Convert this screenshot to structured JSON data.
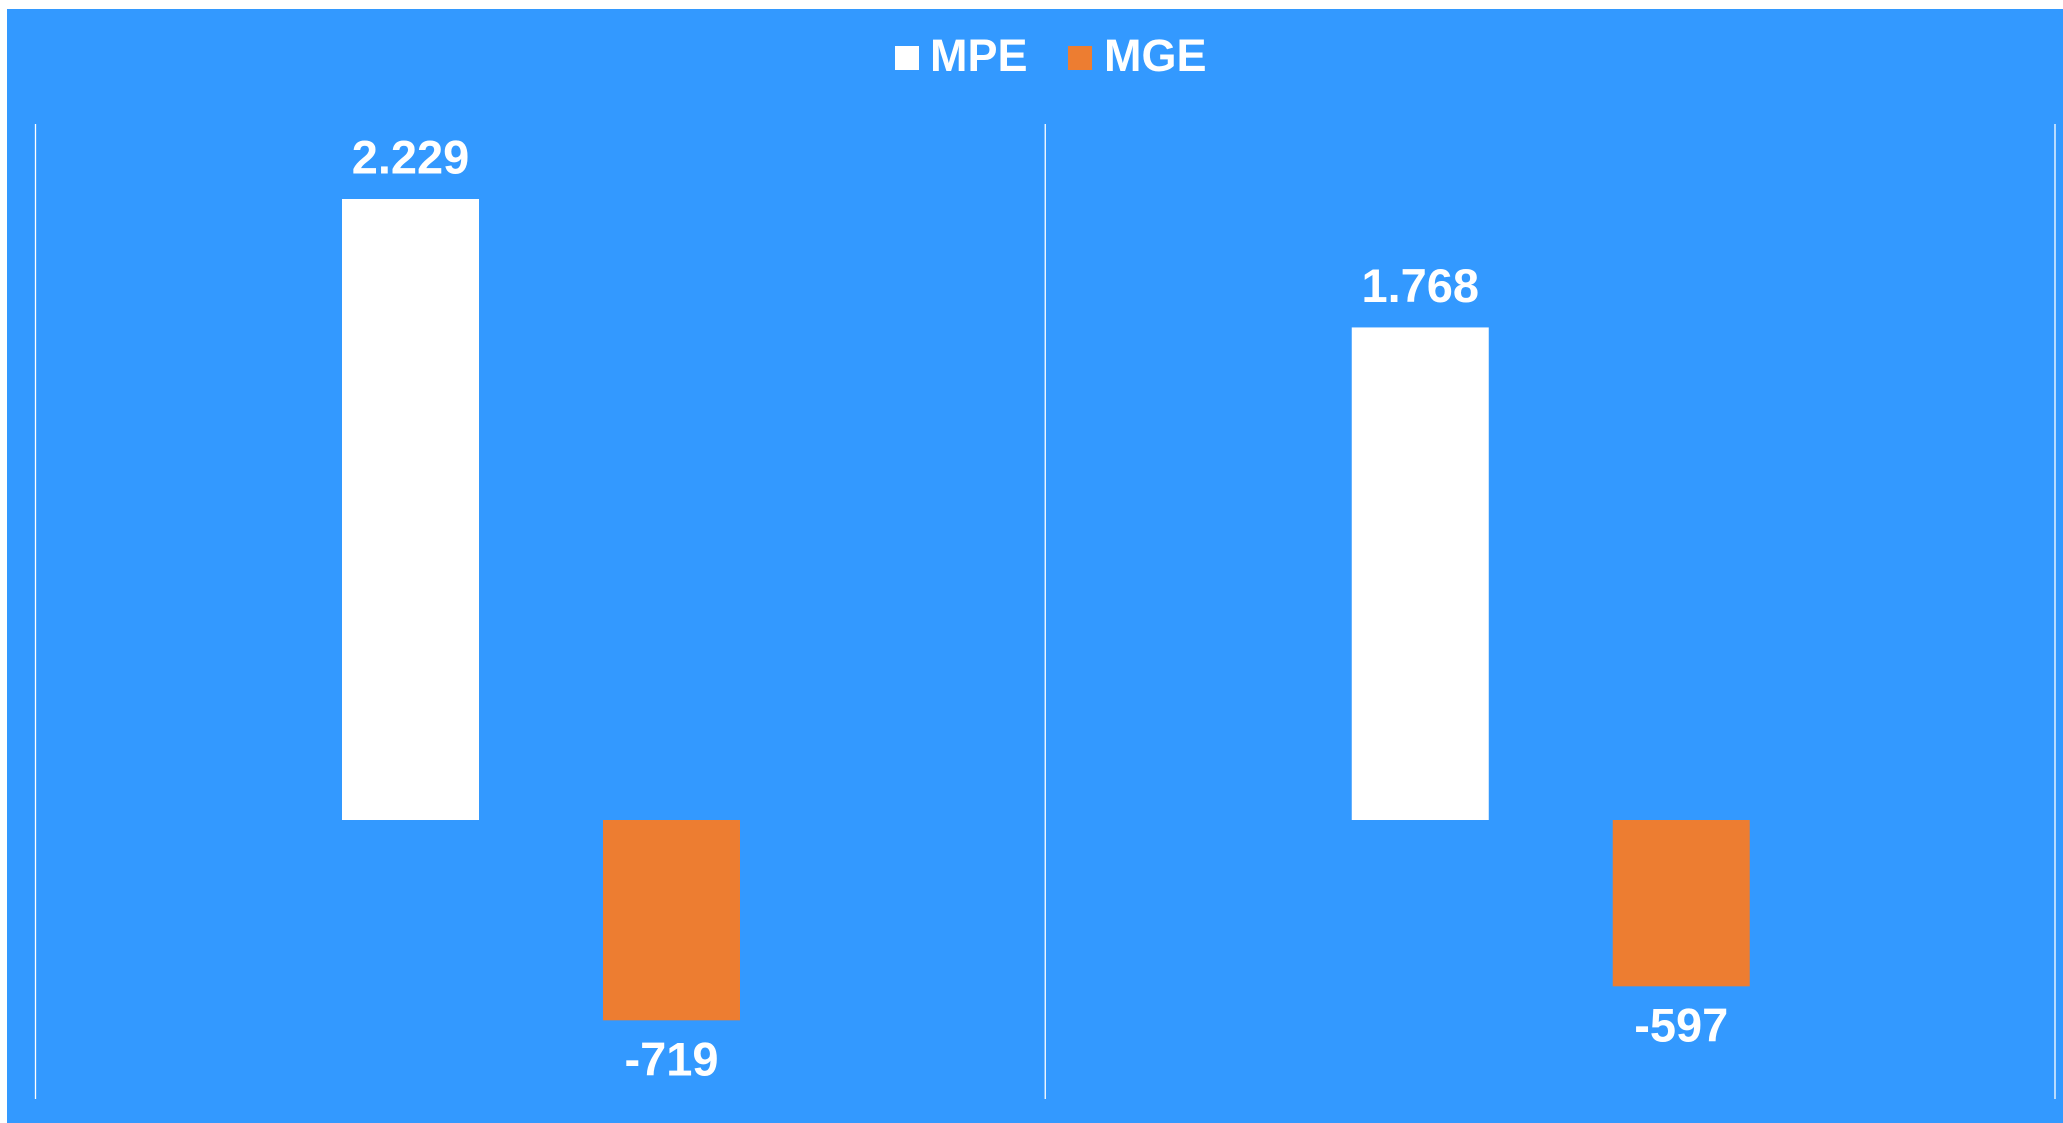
{
  "chart_data": {
    "type": "bar",
    "categories": [
      null,
      null
    ],
    "legend": "top",
    "series": [
      {
        "name": "MPE",
        "color": "#ffffff",
        "values": [
          2229,
          1768
        ],
        "value_labels": [
          "2.229",
          "1.768"
        ]
      },
      {
        "name": "MGE",
        "color": "#ed7d31",
        "values": [
          -719,
          -597
        ],
        "value_labels": [
          "-719",
          "-597"
        ]
      }
    ]
  }
}
